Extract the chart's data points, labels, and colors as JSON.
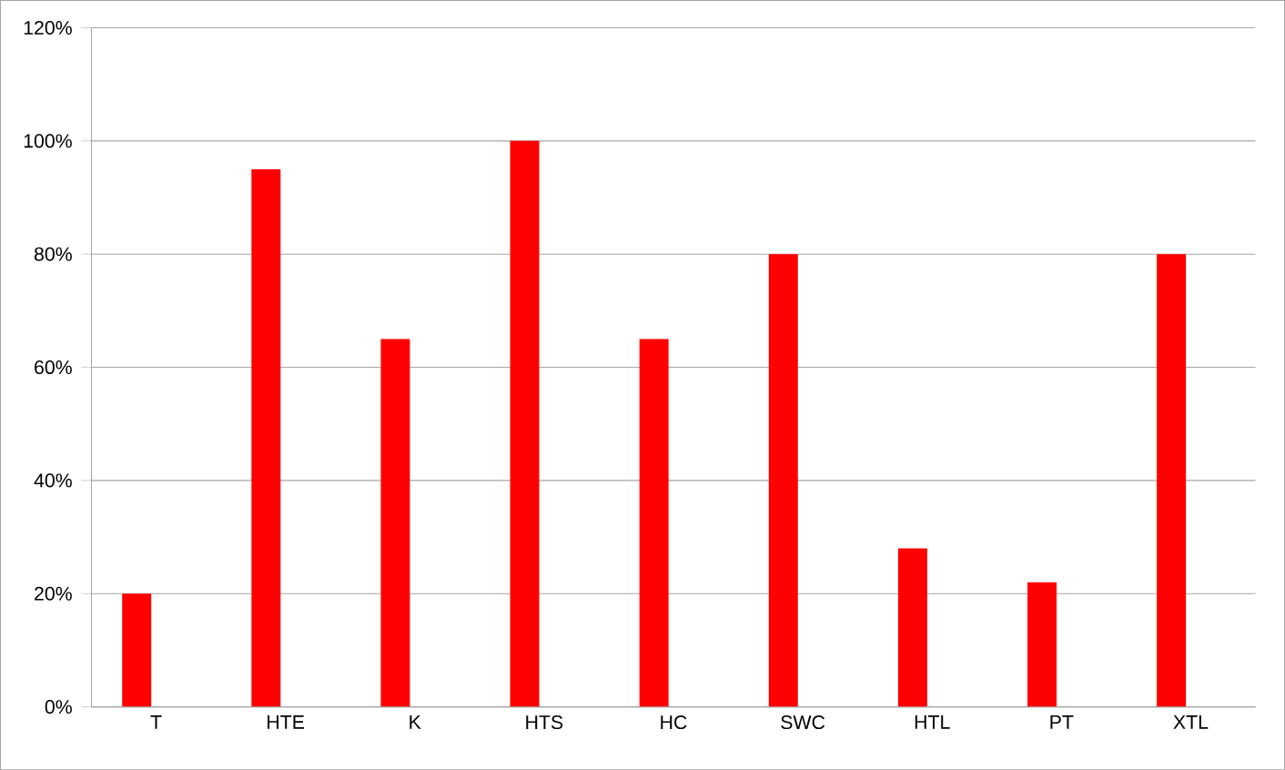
{
  "chart_data": {
    "type": "bar",
    "categories": [
      "T",
      "HTE",
      "K",
      "HTS",
      "HC",
      "SWC",
      "HTL",
      "PT",
      "XTL"
    ],
    "values": [
      20,
      95,
      65,
      100,
      65,
      80,
      28,
      22,
      80
    ],
    "color": "#ff0000",
    "ylim": [
      0,
      120
    ],
    "yticks": [
      {
        "value": 0,
        "label": "0%"
      },
      {
        "value": 20,
        "label": "20%"
      },
      {
        "value": 40,
        "label": "40%"
      },
      {
        "value": 60,
        "label": "60%"
      },
      {
        "value": 80,
        "label": "80%"
      },
      {
        "value": 100,
        "label": "100%"
      },
      {
        "value": 120,
        "label": "120%"
      }
    ],
    "grid": "y"
  }
}
